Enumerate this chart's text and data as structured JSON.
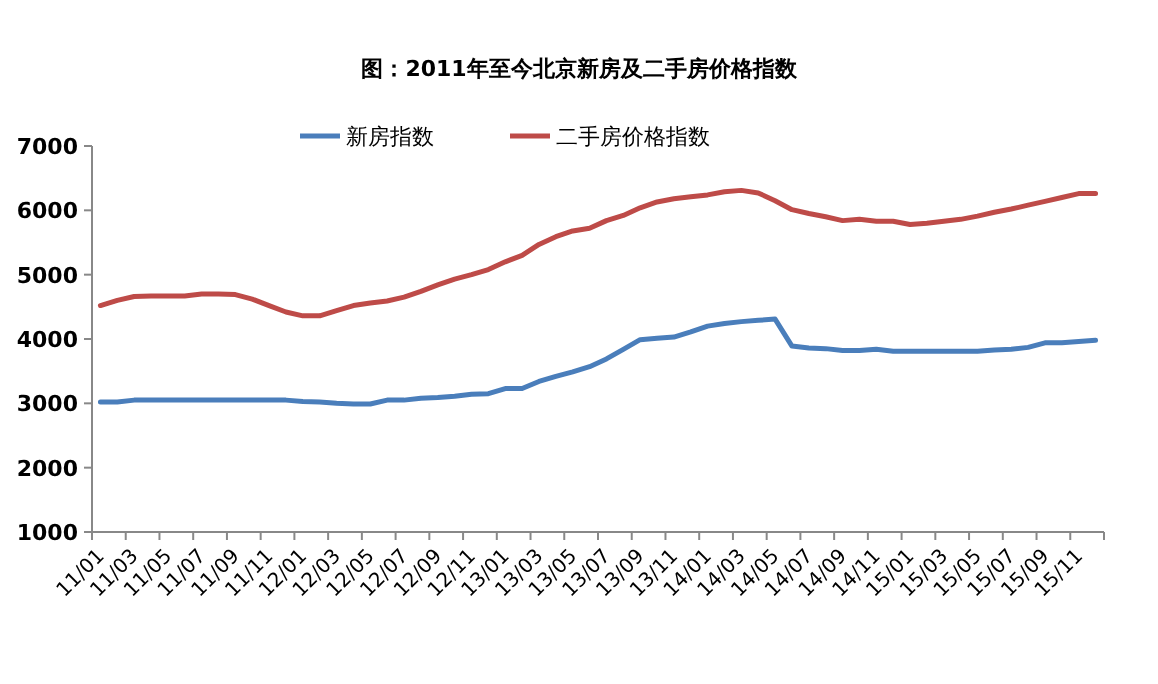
{
  "chart_data": {
    "type": "line",
    "title": "图：2011年至今北京新房及二手房价格指数",
    "categories": [
      "11/01",
      null,
      "11/03",
      null,
      "11/05",
      null,
      "11/07",
      null,
      "11/09",
      null,
      "11/11",
      null,
      "12/01",
      null,
      "12/03",
      null,
      "12/05",
      null,
      "12/07",
      null,
      "12/09",
      null,
      "12/11",
      null,
      "13/01",
      null,
      "13/03",
      null,
      "13/05",
      null,
      "13/07",
      null,
      "13/09",
      null,
      "13/11",
      null,
      "14/01",
      null,
      "14/03",
      null,
      "14/05",
      null,
      "14/07",
      null,
      "14/09",
      null,
      "14/11",
      null,
      "15/01",
      null,
      "15/03",
      null,
      "15/05",
      null,
      "15/07",
      null,
      "15/09",
      null,
      "15/11",
      null
    ],
    "series": [
      {
        "name": "新房指数",
        "color": "#4a7ebb",
        "values": [
          3020,
          3020,
          3050,
          3050,
          3050,
          3050,
          3050,
          3050,
          3050,
          3050,
          3050,
          3050,
          3030,
          3020,
          3000,
          2990,
          2990,
          3050,
          3050,
          3080,
          3090,
          3110,
          3140,
          3150,
          3230,
          3230,
          3340,
          3420,
          3490,
          3570,
          3690,
          3840,
          3990,
          4010,
          4030,
          4110,
          4200,
          4240,
          4270,
          4290,
          4310,
          3890,
          3860,
          3850,
          3820,
          3820,
          3840,
          3810,
          3810,
          3810,
          3810,
          3810,
          3810,
          3830,
          3840,
          3870,
          3940,
          3940,
          3960,
          3980
        ]
      },
      {
        "name": "二手房价格指数",
        "color": "#be4b48",
        "values": [
          4520,
          4600,
          4660,
          4670,
          4670,
          4670,
          4700,
          4700,
          4690,
          4620,
          4520,
          4420,
          4360,
          4360,
          4440,
          4520,
          4560,
          4590,
          4650,
          4740,
          4840,
          4930,
          5000,
          5080,
          5200,
          5300,
          5470,
          5590,
          5680,
          5720,
          5840,
          5920,
          6040,
          6130,
          6180,
          6210,
          6240,
          6290,
          6310,
          6270,
          6150,
          6010,
          5950,
          5900,
          5840,
          5860,
          5830,
          5830,
          5780,
          5800,
          5830,
          5860,
          5910,
          5970,
          6020,
          6080,
          6140,
          6200,
          6260,
          6260
        ]
      }
    ],
    "ylim": [
      1000,
      7000
    ],
    "yticks": [
      1000,
      2000,
      3000,
      4000,
      5000,
      6000,
      7000
    ],
    "grid": false,
    "legend": "top",
    "marker": "none",
    "line_style": "solid"
  }
}
